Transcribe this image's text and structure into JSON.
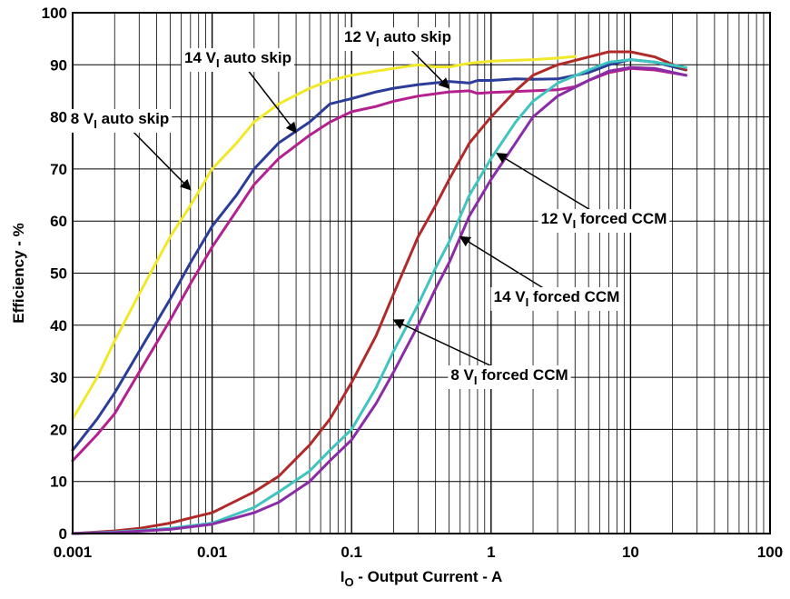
{
  "chart_data": {
    "type": "line",
    "title": "",
    "xlabel": {
      "main": "I",
      "sub": "O",
      "rest": " - Output Current - A"
    },
    "ylabel": "Efficiency - %",
    "xscale": "log",
    "xlim": [
      0.001,
      100
    ],
    "ylim": [
      0,
      100
    ],
    "grid": true,
    "x_ticks": [
      {
        "value": 0.001,
        "label": "0.001"
      },
      {
        "value": 0.01,
        "label": "0.01"
      },
      {
        "value": 0.1,
        "label": "0.1"
      },
      {
        "value": 1,
        "label": "1"
      },
      {
        "value": 10,
        "label": "10"
      },
      {
        "value": 100,
        "label": "100"
      }
    ],
    "y_ticks": [
      0,
      10,
      20,
      30,
      40,
      50,
      60,
      70,
      80,
      90,
      100
    ],
    "series": [
      {
        "name": "8 VI auto skip",
        "color": "#f2e82a",
        "points": [
          [
            0.001,
            22
          ],
          [
            0.0015,
            30
          ],
          [
            0.002,
            37
          ],
          [
            0.003,
            46
          ],
          [
            0.005,
            57
          ],
          [
            0.007,
            63
          ],
          [
            0.01,
            70
          ],
          [
            0.015,
            75
          ],
          [
            0.02,
            79
          ],
          [
            0.03,
            82.5
          ],
          [
            0.05,
            85.5
          ],
          [
            0.07,
            87
          ],
          [
            0.1,
            88
          ],
          [
            0.15,
            88.8
          ],
          [
            0.2,
            89.3
          ],
          [
            0.3,
            90
          ],
          [
            0.4,
            89.6
          ],
          [
            0.5,
            89.6
          ],
          [
            0.7,
            90.3
          ],
          [
            1,
            90.7
          ],
          [
            2,
            91
          ],
          [
            3,
            91.3
          ],
          [
            4,
            91.6
          ]
        ]
      },
      {
        "name": "12 VI auto skip",
        "color": "#2b3d99",
        "points": [
          [
            0.001,
            16
          ],
          [
            0.0015,
            22
          ],
          [
            0.002,
            27
          ],
          [
            0.003,
            35
          ],
          [
            0.005,
            45
          ],
          [
            0.007,
            52
          ],
          [
            0.01,
            59
          ],
          [
            0.015,
            65
          ],
          [
            0.02,
            70
          ],
          [
            0.03,
            75
          ],
          [
            0.05,
            79
          ],
          [
            0.07,
            82.5
          ],
          [
            0.1,
            83.5
          ],
          [
            0.15,
            84.8
          ],
          [
            0.2,
            85.5
          ],
          [
            0.3,
            86.2
          ],
          [
            0.5,
            86.8
          ],
          [
            0.7,
            86.5
          ],
          [
            0.8,
            87
          ],
          [
            1,
            87
          ],
          [
            1.5,
            87.3
          ],
          [
            2,
            87.2
          ],
          [
            3,
            87.3
          ],
          [
            5,
            88.5
          ],
          [
            7,
            90
          ],
          [
            10,
            91
          ],
          [
            15,
            90.5
          ],
          [
            25,
            89
          ]
        ]
      },
      {
        "name": "14 VI auto skip",
        "color": "#b5208f",
        "points": [
          [
            0.001,
            14
          ],
          [
            0.0015,
            19
          ],
          [
            0.002,
            23
          ],
          [
            0.003,
            31
          ],
          [
            0.005,
            41
          ],
          [
            0.007,
            48
          ],
          [
            0.01,
            55
          ],
          [
            0.015,
            62
          ],
          [
            0.02,
            67
          ],
          [
            0.03,
            72
          ],
          [
            0.05,
            76.5
          ],
          [
            0.07,
            79
          ],
          [
            0.1,
            81
          ],
          [
            0.15,
            82
          ],
          [
            0.2,
            83
          ],
          [
            0.3,
            84
          ],
          [
            0.5,
            84.8
          ],
          [
            0.7,
            85
          ],
          [
            0.8,
            84.5
          ],
          [
            1,
            84.7
          ],
          [
            2,
            85
          ],
          [
            3,
            85.2
          ],
          [
            4,
            85.8
          ],
          [
            5,
            87
          ],
          [
            7,
            88.5
          ],
          [
            10,
            89.3
          ],
          [
            15,
            89
          ],
          [
            25,
            88
          ]
        ]
      },
      {
        "name": "12 VI forced CCM",
        "color": "#b02a2a",
        "points": [
          [
            0.001,
            0
          ],
          [
            0.002,
            0.5
          ],
          [
            0.003,
            1
          ],
          [
            0.005,
            2
          ],
          [
            0.007,
            3
          ],
          [
            0.01,
            4
          ],
          [
            0.02,
            8
          ],
          [
            0.03,
            11
          ],
          [
            0.05,
            17
          ],
          [
            0.07,
            22
          ],
          [
            0.1,
            29
          ],
          [
            0.15,
            38
          ],
          [
            0.2,
            46
          ],
          [
            0.3,
            57
          ],
          [
            0.4,
            63
          ],
          [
            0.5,
            68
          ],
          [
            0.7,
            75
          ],
          [
            1,
            80
          ],
          [
            1.5,
            85
          ],
          [
            2,
            88
          ],
          [
            3,
            90
          ],
          [
            5,
            91.5
          ],
          [
            7,
            92.5
          ],
          [
            10,
            92.5
          ],
          [
            15,
            91.5
          ],
          [
            25,
            89
          ]
        ]
      },
      {
        "name": "14 VI forced CCM",
        "color": "#3fc4c0",
        "points": [
          [
            0.001,
            0
          ],
          [
            0.002,
            0.3
          ],
          [
            0.005,
            1
          ],
          [
            0.01,
            2
          ],
          [
            0.02,
            5
          ],
          [
            0.03,
            8
          ],
          [
            0.05,
            12
          ],
          [
            0.07,
            16
          ],
          [
            0.1,
            20
          ],
          [
            0.15,
            28
          ],
          [
            0.2,
            35
          ],
          [
            0.3,
            44
          ],
          [
            0.4,
            51
          ],
          [
            0.5,
            56
          ],
          [
            0.7,
            65
          ],
          [
            1,
            72
          ],
          [
            1.5,
            79
          ],
          [
            2,
            83
          ],
          [
            3,
            86.5
          ],
          [
            5,
            89
          ],
          [
            7,
            90.5
          ],
          [
            10,
            91
          ],
          [
            15,
            90.5
          ],
          [
            25,
            89.5
          ]
        ]
      },
      {
        "name": "8 VI forced CCM",
        "color": "#8a2ca6",
        "points": [
          [
            0.001,
            0
          ],
          [
            0.002,
            0.2
          ],
          [
            0.005,
            0.8
          ],
          [
            0.01,
            1.8
          ],
          [
            0.02,
            4
          ],
          [
            0.03,
            6
          ],
          [
            0.05,
            10
          ],
          [
            0.07,
            14
          ],
          [
            0.1,
            18
          ],
          [
            0.15,
            25
          ],
          [
            0.2,
            31
          ],
          [
            0.3,
            40
          ],
          [
            0.4,
            47
          ],
          [
            0.5,
            52
          ],
          [
            0.7,
            61
          ],
          [
            1,
            68
          ],
          [
            1.5,
            75
          ],
          [
            2,
            80
          ],
          [
            3,
            84
          ],
          [
            5,
            87
          ],
          [
            7,
            88.8
          ],
          [
            10,
            89.5
          ],
          [
            15,
            89.3
          ],
          [
            25,
            88
          ]
        ]
      }
    ],
    "annotations": [
      {
        "prefix": "8 V",
        "sub": "I",
        "suffix": " auto skip",
        "arrow_to": [
          0.007,
          66
        ],
        "target_series": "8 VI auto skip"
      },
      {
        "prefix": "14 V",
        "sub": "I",
        "suffix": " auto skip",
        "arrow_to": [
          0.04,
          77
        ],
        "target_series": "14 VI auto skip"
      },
      {
        "prefix": "12 V",
        "sub": "I",
        "suffix": " auto skip",
        "arrow_to": [
          0.5,
          85.5
        ],
        "target_series": "12 VI auto skip"
      },
      {
        "prefix": "12 V",
        "sub": "I",
        "suffix": " forced CCM",
        "arrow_to": [
          1.1,
          73
        ],
        "target_series": "12 VI forced CCM"
      },
      {
        "prefix": "14 V",
        "sub": "I",
        "suffix": " forced CCM",
        "arrow_to": [
          0.6,
          57
        ],
        "target_series": "14 VI forced CCM"
      },
      {
        "prefix": "8 V",
        "sub": "I",
        "suffix": " forced CCM",
        "arrow_to": [
          0.2,
          41
        ],
        "target_series": "8 VI forced CCM"
      }
    ]
  }
}
